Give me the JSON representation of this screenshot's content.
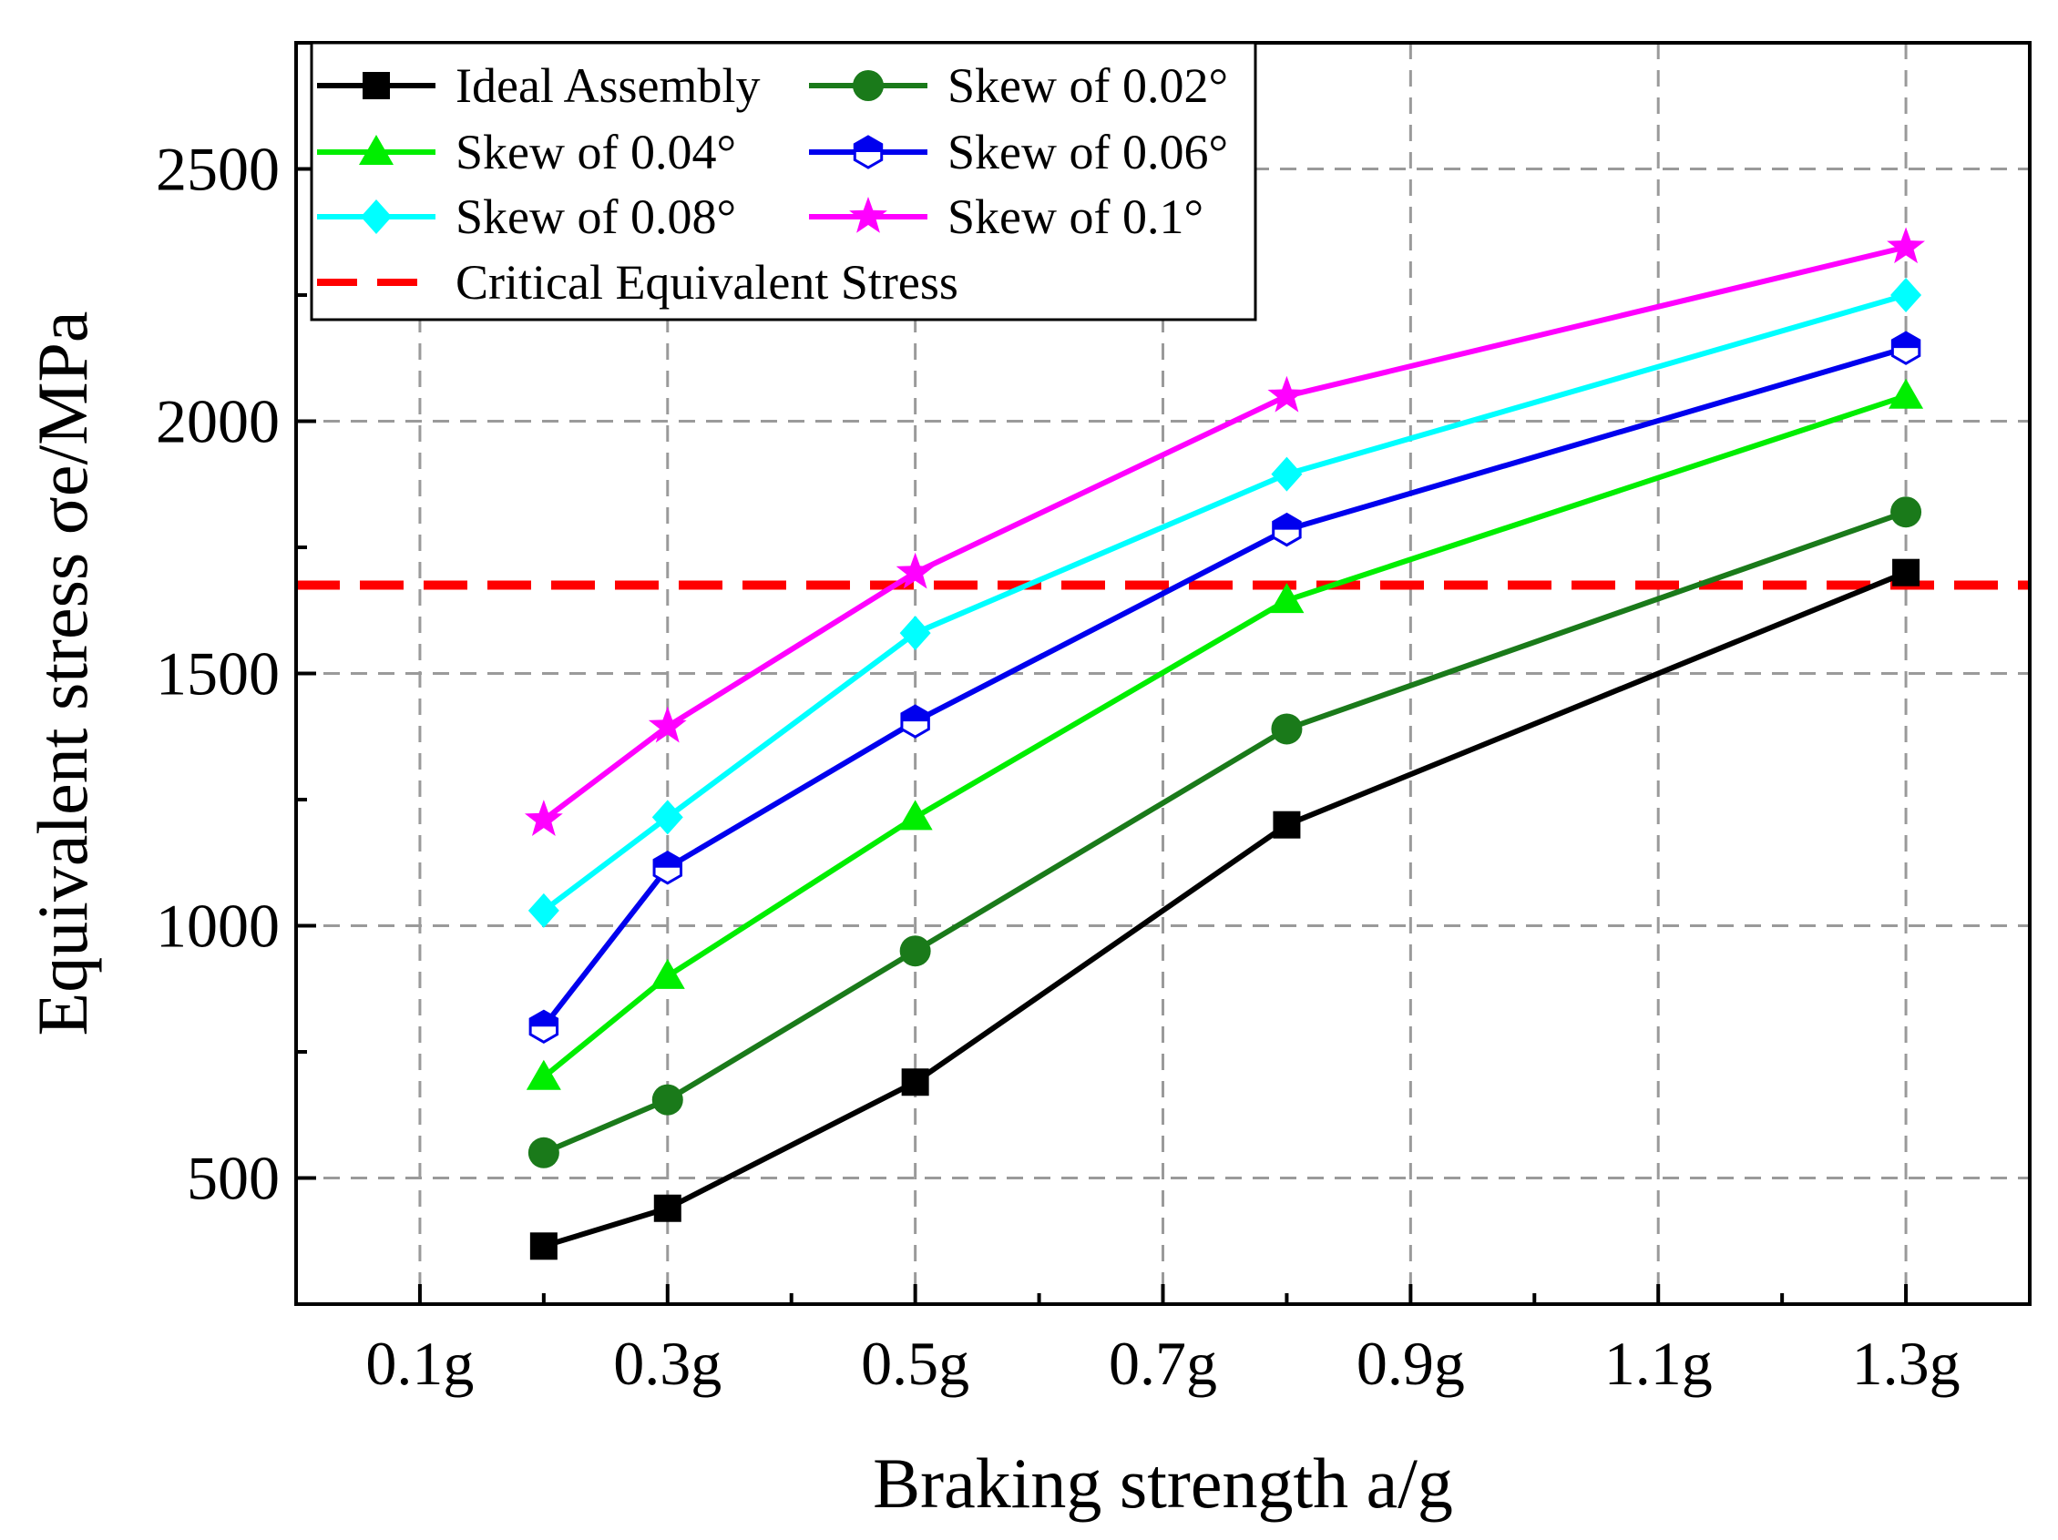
{
  "chart_data": {
    "type": "line",
    "xlabel": "Braking strength a/g",
    "ylabel": "Equivalent stress σe/MPa",
    "xlim": [
      0.0,
      1.4
    ],
    "ylim": [
      250,
      2750
    ],
    "x_ticks": [
      {
        "value": 0.1,
        "label": "0.1g"
      },
      {
        "value": 0.3,
        "label": "0.3g"
      },
      {
        "value": 0.5,
        "label": "0.5g"
      },
      {
        "value": 0.7,
        "label": "0.7g"
      },
      {
        "value": 0.9,
        "label": "0.9g"
      },
      {
        "value": 1.1,
        "label": "1.1g"
      },
      {
        "value": 1.3,
        "label": "1.3g"
      }
    ],
    "y_ticks": [
      {
        "value": 500,
        "label": "500"
      },
      {
        "value": 1000,
        "label": "1000"
      },
      {
        "value": 1500,
        "label": "1500"
      },
      {
        "value": 2000,
        "label": "2000"
      },
      {
        "value": 2500,
        "label": "2500"
      }
    ],
    "x": [
      0.2,
      0.3,
      0.5,
      0.8,
      1.3
    ],
    "series": [
      {
        "name": "Ideal Assembly",
        "color": "#000000",
        "marker": "square",
        "values": [
          365,
          440,
          690,
          1200,
          1700
        ]
      },
      {
        "name": "Skew of 0.02°",
        "color": "#1a7a1a",
        "marker": "circle",
        "values": [
          550,
          655,
          950,
          1390,
          1820
        ]
      },
      {
        "name": "Skew of 0.04°",
        "color": "#00ee00",
        "marker": "triangle",
        "values": [
          700,
          900,
          1215,
          1645,
          2050
        ]
      },
      {
        "name": "Skew of 0.06°",
        "color": "#0000ee",
        "marker": "hexagon",
        "values": [
          800,
          1115,
          1405,
          1785,
          2145
        ]
      },
      {
        "name": "Skew of 0.08°",
        "color": "#00ffff",
        "marker": "diamond",
        "values": [
          1030,
          1215,
          1580,
          1895,
          2250
        ]
      },
      {
        "name": "Skew of 0.1°",
        "color": "#ff00ff",
        "marker": "star",
        "values": [
          1210,
          1395,
          1700,
          2050,
          2345
        ]
      }
    ],
    "reference_line": {
      "name": "Critical Equivalent Stress",
      "value": 1675,
      "color": "#ff0000",
      "style": "dashed"
    },
    "grid": true,
    "legend_position": "top-left"
  }
}
